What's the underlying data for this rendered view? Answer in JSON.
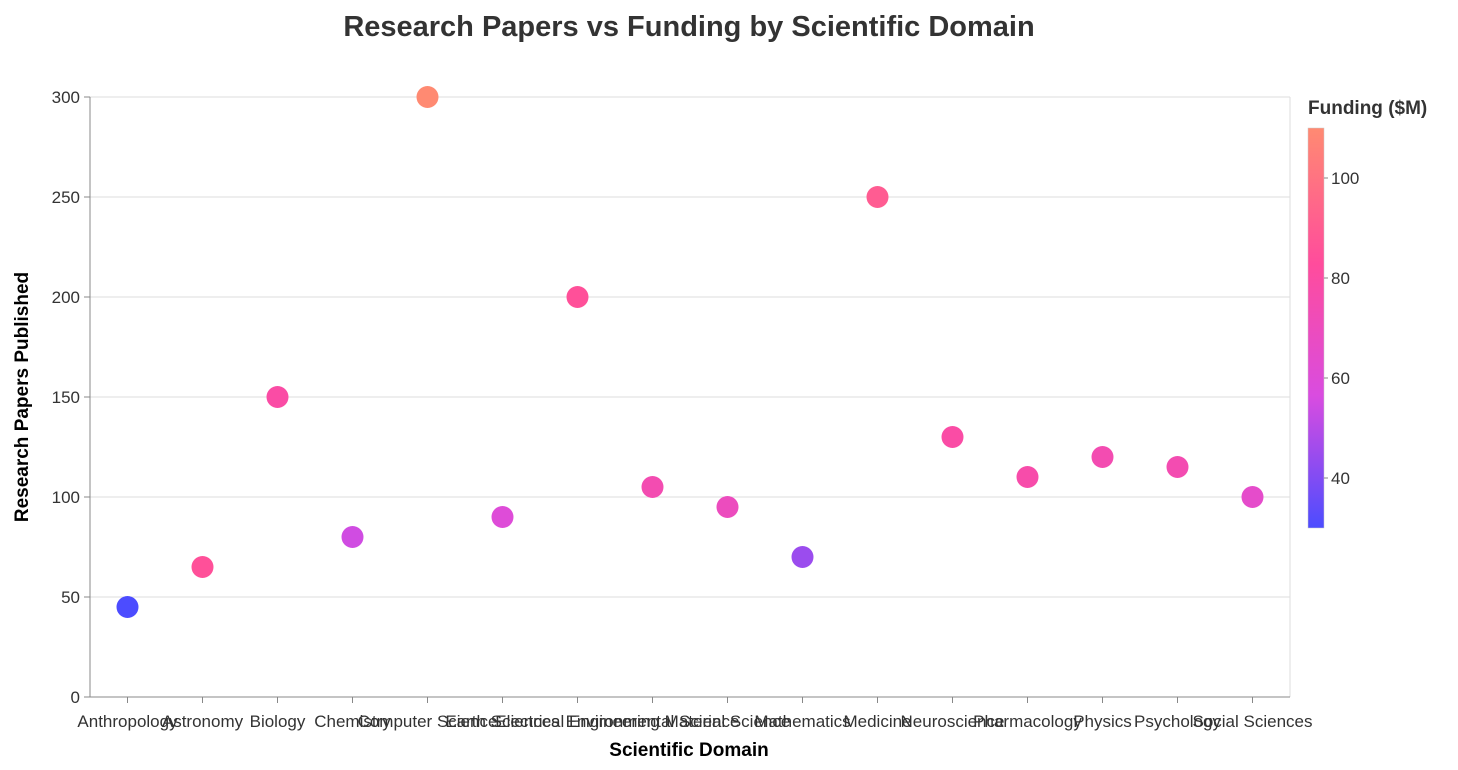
{
  "chart_data": {
    "type": "scatter",
    "title": "Research Papers vs Funding by Scientific Domain",
    "xlabel": "Scientific Domain",
    "ylabel": "Research Papers Published",
    "ylim": [
      0,
      300
    ],
    "yticks": [
      0,
      50,
      100,
      150,
      200,
      250,
      300
    ],
    "grid": true,
    "legend": {
      "title": "Funding ($M)",
      "placement": "right",
      "range": [
        30,
        110
      ],
      "ticks": [
        40,
        60,
        80,
        100
      ],
      "colors": [
        "#4c4cff",
        "#d94ce0",
        "#ff4c9c",
        "#ff8a72"
      ]
    },
    "categories": [
      "Anthropology",
      "Astronomy",
      "Biology",
      "Chemistry",
      "Computer Science",
      "Earth Sciences",
      "Electrical Engineering",
      "Environmental Science",
      "Material Science",
      "Mathematics",
      "Medicine",
      "Neuroscience",
      "Pharmacology",
      "Physics",
      "Psychology",
      "Social Sciences"
    ],
    "points": [
      {
        "x": "Anthropology",
        "papers": 45,
        "funding": 30
      },
      {
        "x": "Astronomy",
        "papers": 65,
        "funding": 85
      },
      {
        "x": "Biology",
        "papers": 150,
        "funding": 80
      },
      {
        "x": "Chemistry",
        "papers": 80,
        "funding": 55
      },
      {
        "x": "Computer Science",
        "papers": 300,
        "funding": 110
      },
      {
        "x": "Earth Sciences",
        "papers": 90,
        "funding": 60
      },
      {
        "x": "Electrical Engineering",
        "papers": 200,
        "funding": 85
      },
      {
        "x": "Environmental Science",
        "papers": 105,
        "funding": 75
      },
      {
        "x": "Material Science",
        "papers": 95,
        "funding": 70
      },
      {
        "x": "Mathematics",
        "papers": 70,
        "funding": 45
      },
      {
        "x": "Medicine",
        "papers": 250,
        "funding": 90
      },
      {
        "x": "Neuroscience",
        "papers": 130,
        "funding": 80
      },
      {
        "x": "Pharmacology",
        "papers": 110,
        "funding": 78
      },
      {
        "x": "Physics",
        "papers": 120,
        "funding": 75
      },
      {
        "x": "Psychology",
        "papers": 115,
        "funding": 75
      },
      {
        "x": "Social Sciences",
        "papers": 100,
        "funding": 65
      }
    ]
  }
}
